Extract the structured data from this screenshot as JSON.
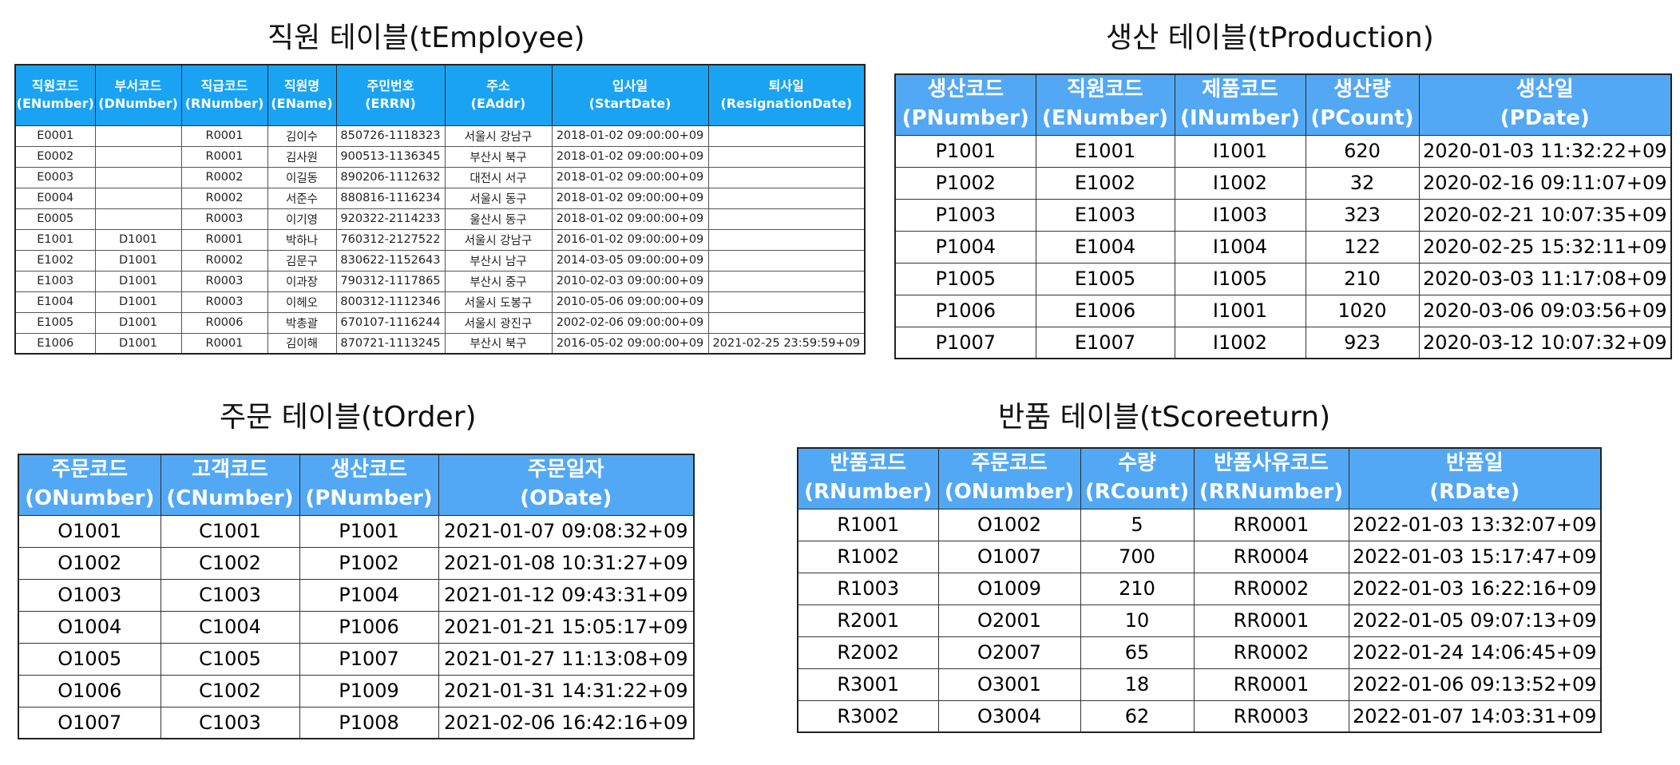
{
  "employee": {
    "title": "직원 테이블(tEmployee)",
    "headers": [
      {
        "ko": "직원코드",
        "en": "(ENumber)"
      },
      {
        "ko": "부서코드",
        "en": "(DNumber)"
      },
      {
        "ko": "직급코드",
        "en": "(RNumber)"
      },
      {
        "ko": "직원명",
        "en": "(EName)"
      },
      {
        "ko": "주민번호",
        "en": "(ERRN)"
      },
      {
        "ko": "주소",
        "en": "(EAddr)"
      },
      {
        "ko": "입사일",
        "en": "(StartDate)"
      },
      {
        "ko": "퇴사일",
        "en": "(ResignationDate)"
      }
    ],
    "rows": [
      [
        "E0001",
        "",
        "R0001",
        "김이수",
        "850726-1118323",
        "서울시 강남구",
        "2018-01-02 09:00:00+09",
        ""
      ],
      [
        "E0002",
        "",
        "R0001",
        "김사원",
        "900513-1136345",
        "부산시 북구",
        "2018-01-02 09:00:00+09",
        ""
      ],
      [
        "E0003",
        "",
        "R0002",
        "이길동",
        "890206-1112632",
        "대전시 서구",
        "2018-01-02 09:00:00+09",
        ""
      ],
      [
        "E0004",
        "",
        "R0002",
        "서준수",
        "880816-1116234",
        "서울시 동구",
        "2018-01-02 09:00:00+09",
        ""
      ],
      [
        "E0005",
        "",
        "R0003",
        "이기영",
        "920322-2114233",
        "울산시 동구",
        "2018-01-02 09:00:00+09",
        ""
      ],
      [
        "E1001",
        "D1001",
        "R0001",
        "박하나",
        "760312-2127522",
        "서울시 강남구",
        "2016-01-02 09:00:00+09",
        ""
      ],
      [
        "E1002",
        "D1001",
        "R0002",
        "김문구",
        "830622-1152643",
        "부산시 남구",
        "2014-03-05 09:00:00+09",
        ""
      ],
      [
        "E1003",
        "D1001",
        "R0003",
        "이과장",
        "790312-1117865",
        "부산시 중구",
        "2010-02-03 09:00:00+09",
        ""
      ],
      [
        "E1004",
        "D1001",
        "R0003",
        "이헤오",
        "800312-1112346",
        "서울시 도봉구",
        "2010-05-06 09:00:00+09",
        ""
      ],
      [
        "E1005",
        "D1001",
        "R0006",
        "박총괄",
        "670107-1116244",
        "서울시 광진구",
        "2002-02-06 09:00:00+09",
        ""
      ],
      [
        "E1006",
        "D1001",
        "R0001",
        "김이해",
        "870721-1113245",
        "부산시 북구",
        "2016-05-02 09:00:00+09",
        "2021-02-25 23:59:59+09"
      ]
    ]
  },
  "production": {
    "title": "생산 테이블(tProduction)",
    "headers": [
      {
        "ko": "생산코드",
        "en": "(PNumber)"
      },
      {
        "ko": "직원코드",
        "en": "(ENumber)"
      },
      {
        "ko": "제품코드",
        "en": "(INumber)"
      },
      {
        "ko": "생산량",
        "en": "(PCount)"
      },
      {
        "ko": "생산일",
        "en": "(PDate)"
      }
    ],
    "rows": [
      [
        "P1001",
        "E1001",
        "I1001",
        "620",
        "2020-01-03 11:32:22+09"
      ],
      [
        "P1002",
        "E1002",
        "I1002",
        "32",
        "2020-02-16 09:11:07+09"
      ],
      [
        "P1003",
        "E1003",
        "I1003",
        "323",
        "2020-02-21 10:07:35+09"
      ],
      [
        "P1004",
        "E1004",
        "I1004",
        "122",
        "2020-02-25 15:32:11+09"
      ],
      [
        "P1005",
        "E1005",
        "I1005",
        "210",
        "2020-03-03 11:17:08+09"
      ],
      [
        "P1006",
        "E1006",
        "I1001",
        "1020",
        "2020-03-06 09:03:56+09"
      ],
      [
        "P1007",
        "E1007",
        "I1002",
        "923",
        "2020-03-12 10:07:32+09"
      ]
    ]
  },
  "order": {
    "title": "주문 테이블(tOrder)",
    "headers": [
      {
        "ko": "주문코드",
        "en": "(ONumber)"
      },
      {
        "ko": "고객코드",
        "en": "(CNumber)"
      },
      {
        "ko": "생산코드",
        "en": "(PNumber)"
      },
      {
        "ko": "주문일자",
        "en": "(ODate)"
      }
    ],
    "rows": [
      [
        "O1001",
        "C1001",
        "P1001",
        "2021-01-07 09:08:32+09"
      ],
      [
        "O1002",
        "C1002",
        "P1002",
        "2021-01-08 10:31:27+09"
      ],
      [
        "O1003",
        "C1003",
        "P1004",
        "2021-01-12 09:43:31+09"
      ],
      [
        "O1004",
        "C1004",
        "P1006",
        "2021-01-21 15:05:17+09"
      ],
      [
        "O1005",
        "C1005",
        "P1007",
        "2021-01-27 11:13:08+09"
      ],
      [
        "O1006",
        "C1002",
        "P1009",
        "2021-01-31 14:31:22+09"
      ],
      [
        "O1007",
        "C1003",
        "P1008",
        "2021-02-06 16:42:16+09"
      ]
    ]
  },
  "return": {
    "title": "반품 테이블(tScoreeturn)",
    "headers": [
      {
        "ko": "반품코드",
        "en": "(RNumber)"
      },
      {
        "ko": "주문코드",
        "en": "(ONumber)"
      },
      {
        "ko": "수량",
        "en": "(RCount)"
      },
      {
        "ko": "반품사유코드",
        "en": "(RRNumber)"
      },
      {
        "ko": "반품일",
        "en": "(RDate)"
      }
    ],
    "rows": [
      [
        "R1001",
        "O1002",
        "5",
        "RR0001",
        "2022-01-03 13:32:07+09"
      ],
      [
        "R1002",
        "O1007",
        "700",
        "RR0004",
        "2022-01-03 15:17:47+09"
      ],
      [
        "R1003",
        "O1009",
        "210",
        "RR0002",
        "2022-01-03 16:22:16+09"
      ],
      [
        "R2001",
        "O2001",
        "10",
        "RR0001",
        "2022-01-05 09:07:13+09"
      ],
      [
        "R2002",
        "O2007",
        "65",
        "RR0002",
        "2022-01-24 14:06:45+09"
      ],
      [
        "R3001",
        "O3001",
        "18",
        "RR0001",
        "2022-01-06 09:13:52+09"
      ],
      [
        "R3002",
        "O3004",
        "62",
        "RR0003",
        "2022-01-07 14:03:31+09"
      ]
    ]
  }
}
